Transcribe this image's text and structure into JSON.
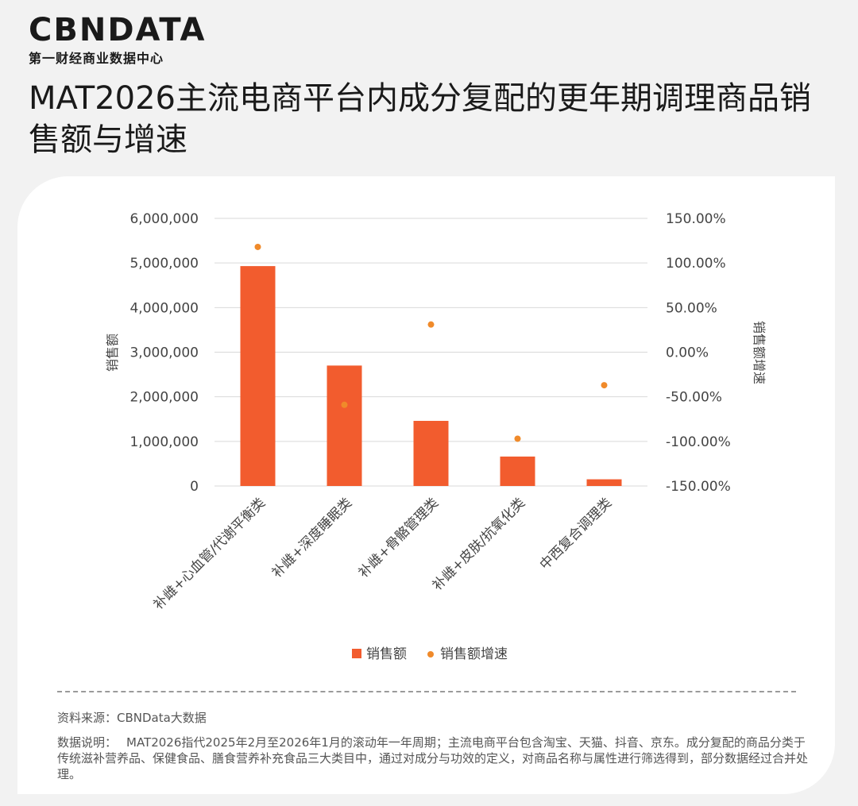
{
  "logo": {
    "name": "CBNDATA",
    "subtitle": "第一财经商业数据中心"
  },
  "title": "MAT2026主流电商平台内成分复配的更年期调理商品销售额与增速",
  "colors": {
    "bar": "#f25c2e",
    "dot": "#f08a2a",
    "grid": "#d9d9d9",
    "text": "#444444"
  },
  "chart_data": {
    "type": "bar",
    "categories": [
      "补雌+心血管/代谢平衡类",
      "补雌+深度睡眠类",
      "补雌+骨骼管理类",
      "补雌+皮肤/抗氧化类",
      "中西复合调理类"
    ],
    "series": [
      {
        "name": "销售额",
        "type": "bar",
        "axis": "left",
        "values": [
          4930000,
          2700000,
          1460000,
          660000,
          150000
        ]
      },
      {
        "name": "销售额增速",
        "type": "scatter",
        "axis": "right",
        "values": [
          1.18,
          -0.59,
          0.31,
          -0.97,
          -0.37
        ]
      }
    ],
    "ylabel": "销售额",
    "y2label": "销售额增速",
    "ylim": [
      0,
      6000000
    ],
    "y2lim": [
      -1.5,
      1.5
    ],
    "yticks": [
      "6,000,000",
      "5,000,000",
      "4,000,000",
      "3,000,000",
      "2,000,000",
      "1,000,000",
      "0"
    ],
    "y2ticks": [
      "150.00%",
      "100.00%",
      "50.00%",
      "0.00%",
      "-50.00%",
      "-100.00%",
      "-150.00%"
    ],
    "legend": {
      "position": "bottom",
      "items": [
        "销售额",
        "销售额增速"
      ]
    },
    "grid": true
  },
  "footer": {
    "source": "资料来源：CBNData大数据",
    "note_label": "数据说明：",
    "note_text": "MAT2026指代2025年2月至2026年1月的滚动年一年周期；主流电商平台包含淘宝、天猫、抖音、京东。成分复配的商品分类于传统滋补营养品、保健食品、膳食营养补充食品三大类目中，通过对成分与功效的定义，对商品名称与属性进行筛选得到，部分数据经过合并处理。"
  }
}
